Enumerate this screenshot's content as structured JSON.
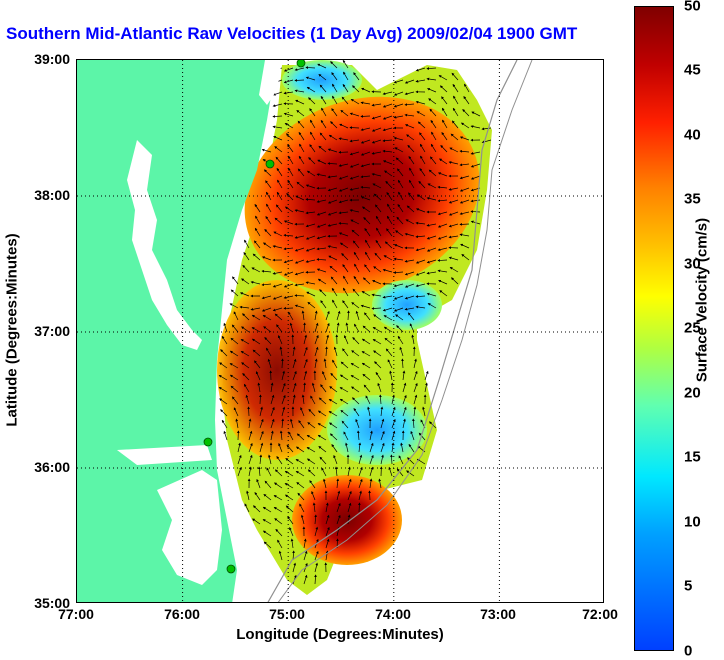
{
  "title": "Southern Mid-Atlantic Raw Velocities (1 Day Avg) 2009/02/04 1900 GMT",
  "x_axis": {
    "label": "Longitude (Degrees:Minutes)",
    "ticks": [
      "77:00",
      "76:00",
      "75:00",
      "74:00",
      "73:00",
      "72:00"
    ]
  },
  "y_axis": {
    "label": "Latitude (Degrees:Minutes)",
    "ticks": [
      "39:00",
      "38:00",
      "37:00",
      "36:00",
      "35:00"
    ]
  },
  "colorbar": {
    "label": "Surface Velocity (cm/s)",
    "ticks": [
      "50",
      "45",
      "40",
      "35",
      "30",
      "25",
      "20",
      "15",
      "10",
      "5",
      "0"
    ],
    "min": 0,
    "max": 50
  },
  "map": {
    "lon_range": [
      -77,
      -72
    ],
    "lat_range": [
      35,
      39
    ],
    "land_color": "#5cf5a8",
    "station_color": "#00c000",
    "grid": "dotted"
  }
}
